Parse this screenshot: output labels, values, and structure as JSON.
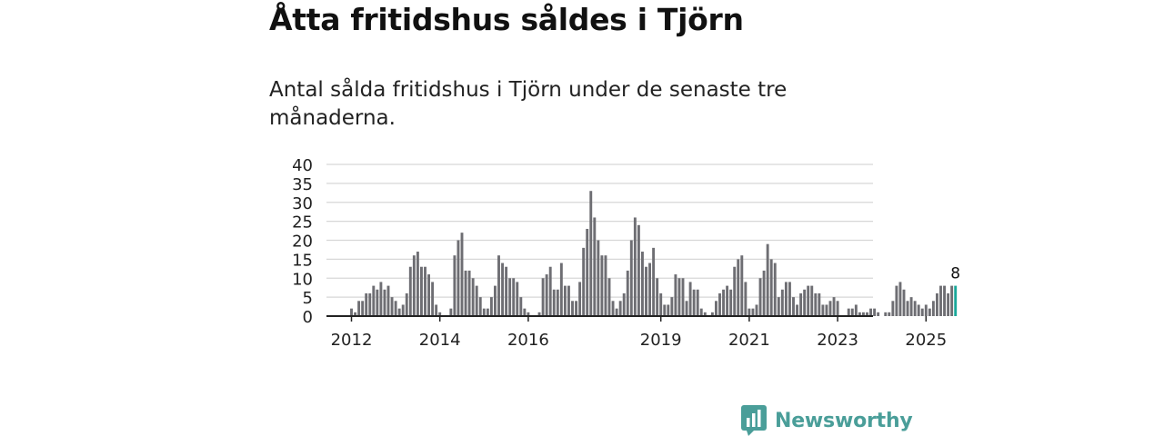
{
  "title": "Åtta fritidshus såldes i Tjörn",
  "subtitle": "Antal sålda fritidshus i Tjörn under de senaste tre månaderna.",
  "colors": {
    "bar": "#6e6e73",
    "highlight": "#1aa89a",
    "grid": "#d7d7d7",
    "axis": "#222222",
    "brand": "#4a9e99"
  },
  "brand": {
    "name": "Newsworthy",
    "icon": "bar-chart-logo-icon"
  },
  "chart_data": {
    "type": "bar",
    "title": "Åtta fritidshus såldes i Tjörn",
    "ylim": [
      0,
      40
    ],
    "yticks": [
      0,
      5,
      10,
      15,
      20,
      25,
      30,
      35,
      40
    ],
    "xticks": [
      "2012",
      "2014",
      "2016",
      "2019",
      "2021",
      "2023",
      "2025"
    ],
    "x_tick_month_index": [
      0,
      24,
      48,
      84,
      108,
      132,
      156
    ],
    "first_month": "2012-01",
    "values": [
      2,
      1,
      4,
      4,
      6,
      6,
      8,
      7,
      9,
      7,
      8,
      5,
      4,
      2,
      3,
      6,
      13,
      16,
      17,
      13,
      13,
      11,
      9,
      3,
      1,
      0,
      0,
      2,
      16,
      20,
      22,
      12,
      12,
      10,
      8,
      5,
      2,
      2,
      5,
      8,
      16,
      14,
      13,
      10,
      10,
      9,
      5,
      2,
      1,
      0,
      0,
      1,
      10,
      11,
      13,
      7,
      7,
      14,
      8,
      8,
      4,
      4,
      9,
      18,
      23,
      33,
      26,
      20,
      16,
      16,
      10,
      4,
      2,
      4,
      6,
      12,
      20,
      26,
      24,
      17,
      13,
      14,
      18,
      10,
      6,
      3,
      3,
      5,
      11,
      10,
      10,
      4,
      9,
      7,
      7,
      2,
      1,
      0,
      1,
      4,
      6,
      7,
      8,
      7,
      13,
      15,
      16,
      9,
      2,
      2,
      3,
      10,
      12,
      19,
      15,
      14,
      5,
      7,
      9,
      9,
      5,
      3,
      6,
      7,
      8,
      8,
      6,
      6,
      3,
      3,
      4,
      5,
      4,
      0,
      0,
      2,
      2,
      3,
      1,
      1,
      1,
      2,
      2,
      1,
      0,
      1,
      1,
      4,
      8,
      9,
      7,
      4,
      5,
      4,
      3,
      2,
      3,
      2,
      4,
      6,
      8,
      8,
      6,
      8,
      8
    ],
    "highlight_last": true,
    "annotation": {
      "label": "8",
      "target": "last"
    }
  }
}
